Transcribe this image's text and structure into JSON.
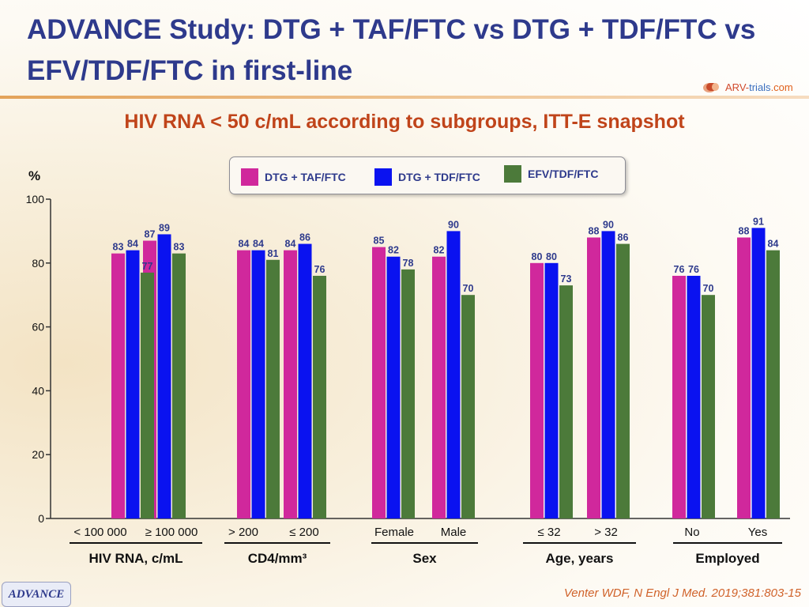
{
  "title": "ADVANCE Study: DTG + TAF/FTC vs DTG + TDF/FTC vs EFV/TDF/FTC in first-line",
  "subtitle": "HIV RNA < 50 c/mL according to subgroups, ITT-E snapshot",
  "logo": {
    "part1": "ARV-",
    "part2": "trials",
    "part3": ".com"
  },
  "footer_badge": "ADVANCE",
  "citation": "Venter WDF, N Engl J Med. 2019;381:803-15",
  "colors": {
    "title": "#2e3a8c",
    "subtitle": "#c0441a",
    "citation": "#d0622a"
  },
  "chart_data": {
    "type": "bar",
    "ylabel": "%",
    "ylim": [
      0,
      100
    ],
    "yticks": [
      0,
      20,
      40,
      60,
      80,
      100
    ],
    "categories": [
      "< 100 000",
      "≥ 100 000",
      "> 200",
      "≤ 200",
      "Female",
      "Male",
      "≤ 32",
      "> 32",
      "No",
      "Yes"
    ],
    "groups": [
      {
        "label": "HIV RNA, c/mL",
        "categories": [
          0,
          1
        ]
      },
      {
        "label": "CD4/mm³",
        "categories": [
          2,
          3
        ]
      },
      {
        "label": "Sex",
        "categories": [
          4,
          5
        ]
      },
      {
        "label": "Age, years",
        "categories": [
          6,
          7
        ]
      },
      {
        "label": "Employed",
        "categories": [
          8,
          9
        ]
      }
    ],
    "series": [
      {
        "name": "DTG + TAF/FTC",
        "color": "#d0289c",
        "values": [
          83,
          87,
          84,
          84,
          85,
          82,
          80,
          88,
          76,
          88
        ]
      },
      {
        "name": "DTG + TDF/FTC",
        "color": "#0a12f0",
        "values": [
          84,
          89,
          84,
          86,
          82,
          90,
          80,
          90,
          76,
          91
        ]
      },
      {
        "name": "EFV/TDF/FTC",
        "color": "#4c7a3a",
        "values": [
          77,
          83,
          81,
          76,
          78,
          70,
          73,
          86,
          70,
          84
        ]
      }
    ]
  }
}
